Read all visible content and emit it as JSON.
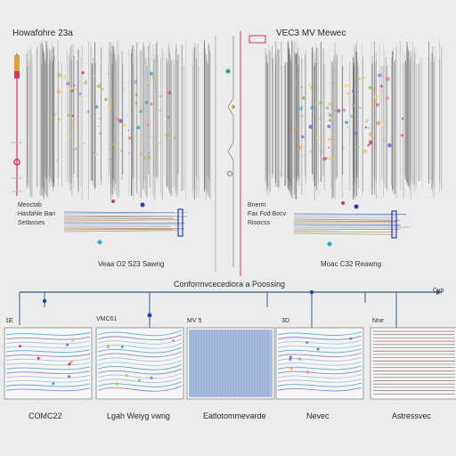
{
  "left_panel": {
    "title": "Howafohre 23a",
    "labels": [
      "Meoctab",
      "Hasfahle Ban",
      "Setlasses"
    ],
    "caption": "Veaa O2 S23 Sawng"
  },
  "right_panel": {
    "title": "VEC3 MV Mewec",
    "labels": [
      "Bnerm",
      "Fax Fod Bocv",
      "Rioocss"
    ],
    "caption": "Moac C32 Reawng"
  },
  "process": {
    "title": "Conformvcecediora a Poossing",
    "arrow_label": "Cyp"
  },
  "tiles": [
    {
      "tag": "1E",
      "caption": "COMC22"
    },
    {
      "tag": "VMC61",
      "caption": "Lgah Weiyg vwng"
    },
    {
      "tag": "MV 5",
      "caption": "Eatlotommevarde"
    },
    {
      "tag": "3D",
      "caption": "Nevec"
    },
    {
      "tag": "Nne",
      "caption": "Astressvec"
    }
  ],
  "colors": {
    "background": "#ececec",
    "accent_red": "#d8345f",
    "accent_blue": "#1f3fbf",
    "connector": "#3d5a80"
  }
}
